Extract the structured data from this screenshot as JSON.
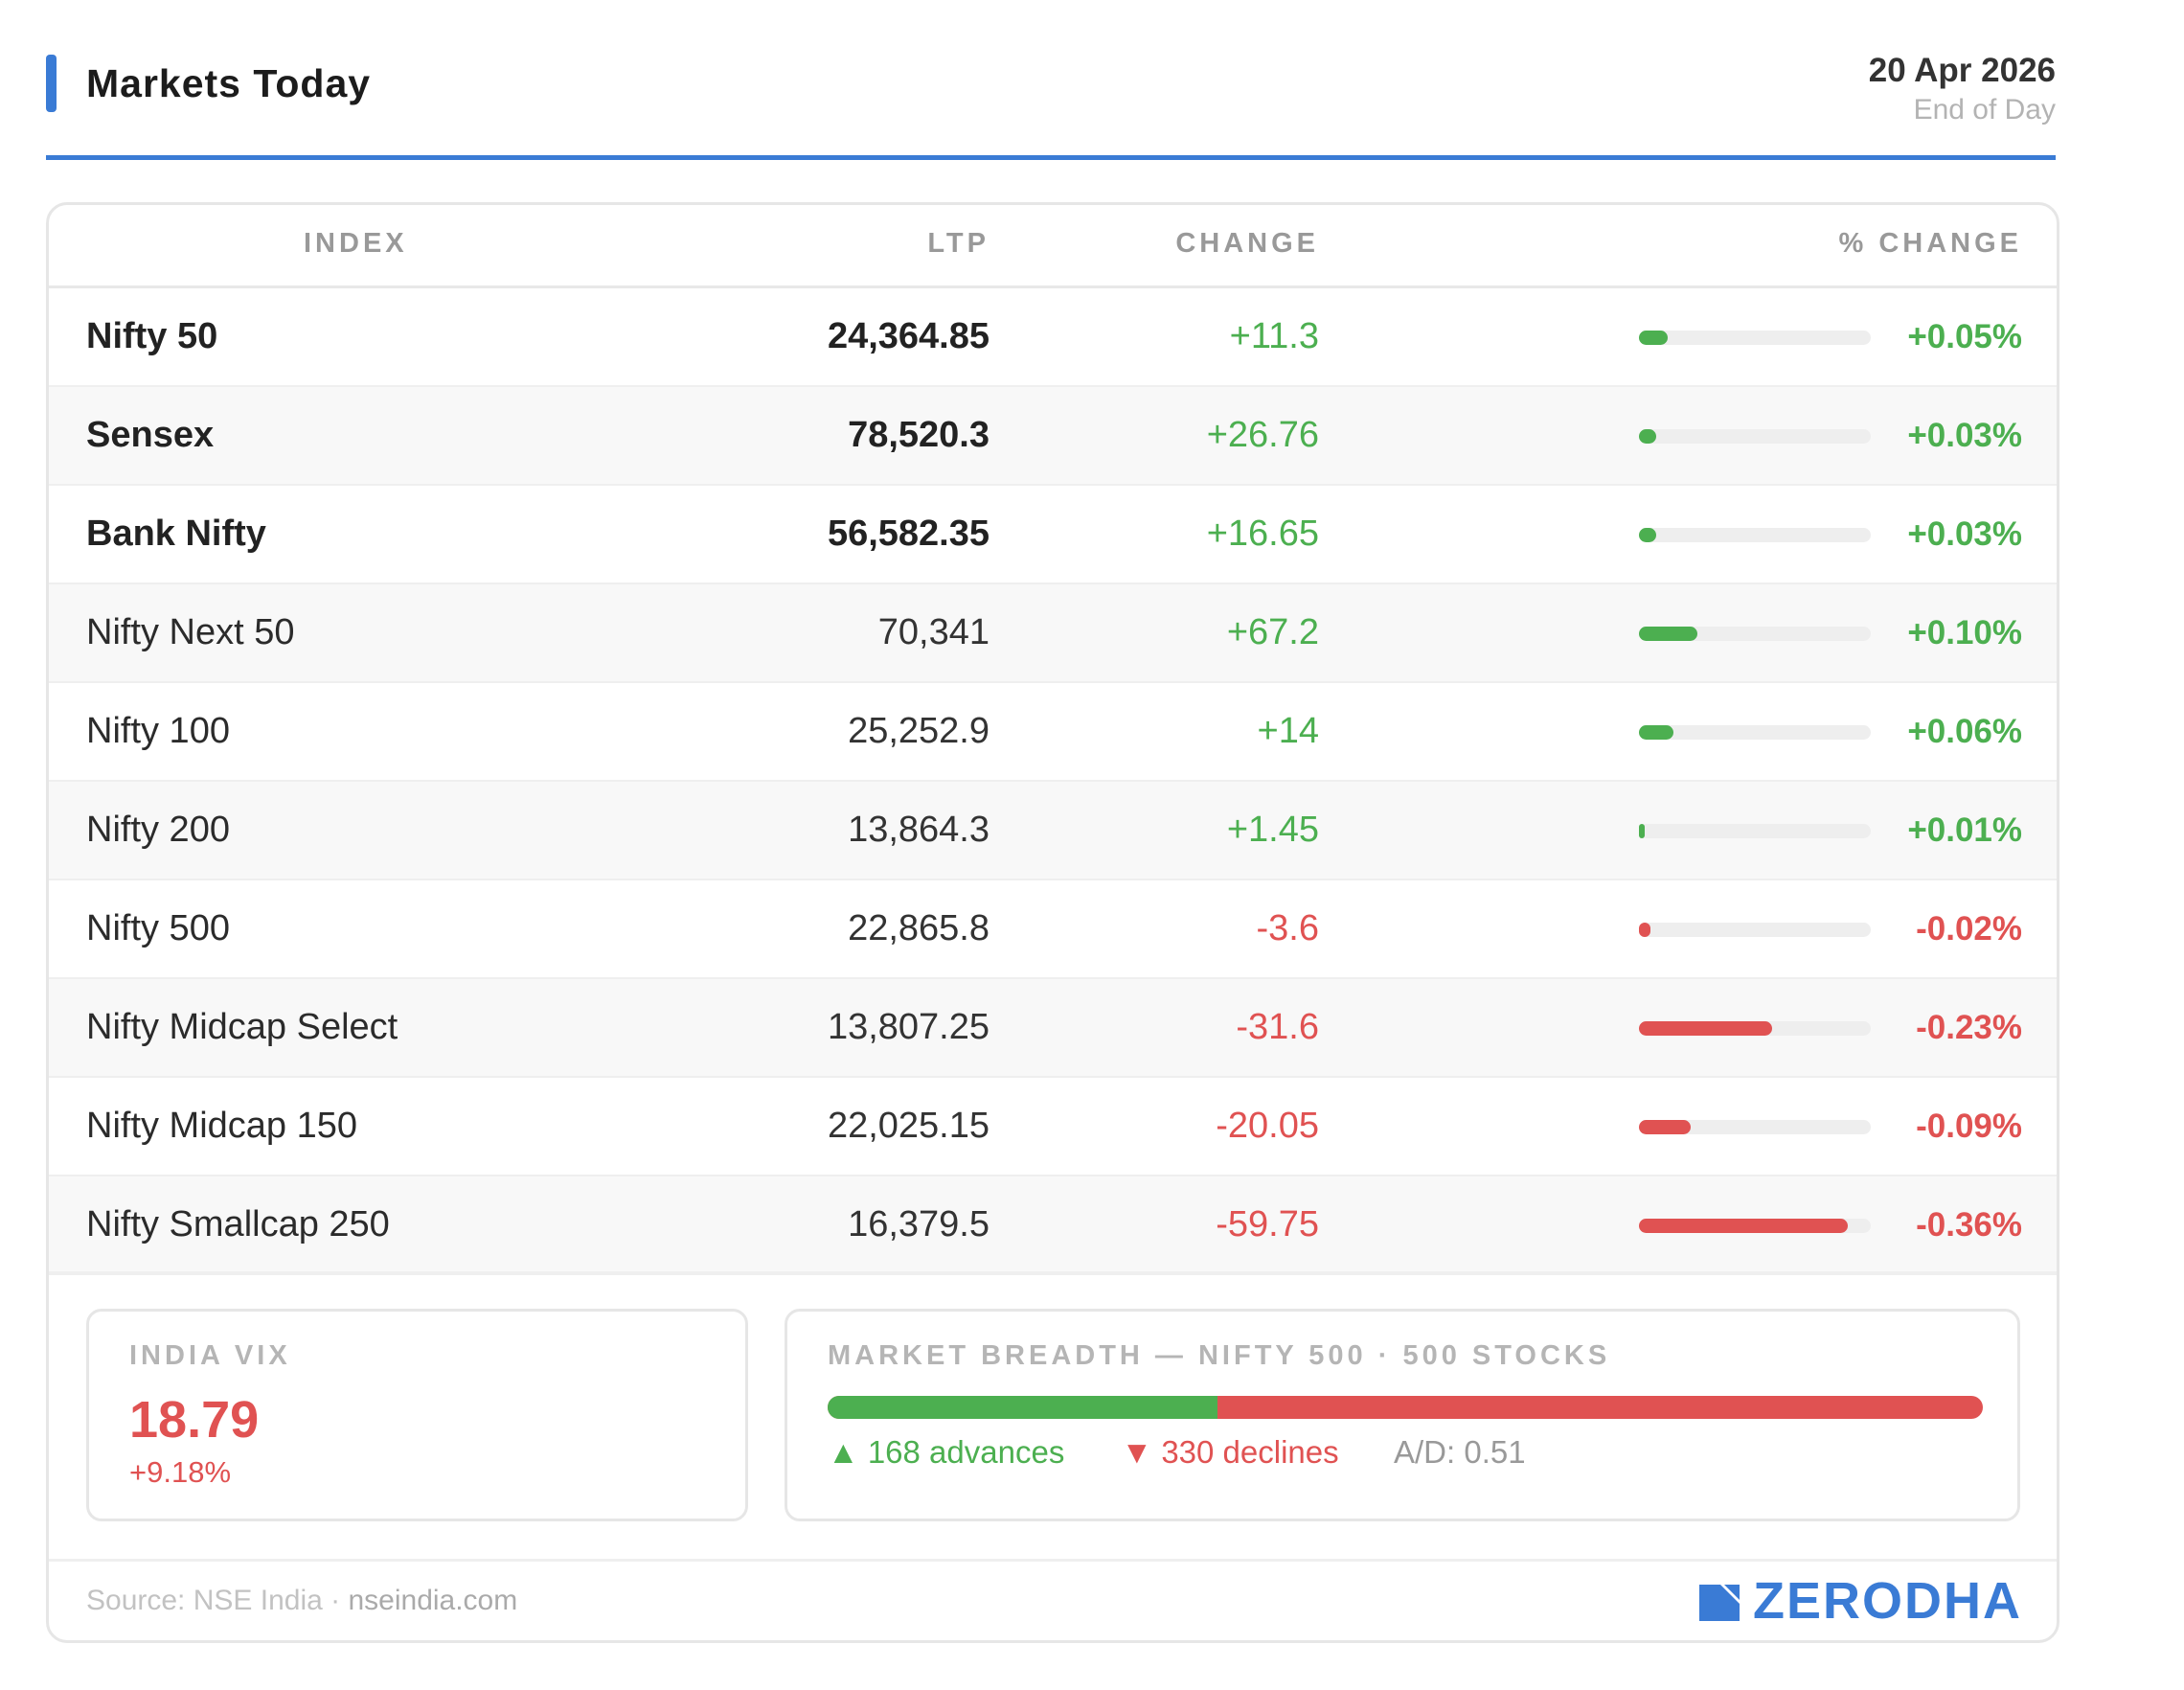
{
  "header": {
    "title": "Markets Today",
    "date": "20 Apr 2026",
    "subtitle": "End of Day",
    "accent_color": "#3a7bd5"
  },
  "table": {
    "columns": [
      "INDEX",
      "LTP",
      "CHANGE",
      "% CHANGE"
    ],
    "pct_bar_max": 0.4,
    "rows": [
      {
        "name": "Nifty 50",
        "ltp": "24,364.85",
        "change": "+11.3",
        "pct": "+0.05%",
        "pct_value": 0.05,
        "major": true
      },
      {
        "name": "Sensex",
        "ltp": "78,520.3",
        "change": "+26.76",
        "pct": "+0.03%",
        "pct_value": 0.03,
        "major": true
      },
      {
        "name": "Bank Nifty",
        "ltp": "56,582.35",
        "change": "+16.65",
        "pct": "+0.03%",
        "pct_value": 0.03,
        "major": true
      },
      {
        "name": "Nifty Next 50",
        "ltp": "70,341",
        "change": "+67.2",
        "pct": "+0.10%",
        "pct_value": 0.1,
        "major": false
      },
      {
        "name": "Nifty 100",
        "ltp": "25,252.9",
        "change": "+14",
        "pct": "+0.06%",
        "pct_value": 0.06,
        "major": false
      },
      {
        "name": "Nifty 200",
        "ltp": "13,864.3",
        "change": "+1.45",
        "pct": "+0.01%",
        "pct_value": 0.01,
        "major": false
      },
      {
        "name": "Nifty 500",
        "ltp": "22,865.8",
        "change": "-3.6",
        "pct": "-0.02%",
        "pct_value": -0.02,
        "major": false
      },
      {
        "name": "Nifty Midcap Select",
        "ltp": "13,807.25",
        "change": "-31.6",
        "pct": "-0.23%",
        "pct_value": -0.23,
        "major": false
      },
      {
        "name": "Nifty Midcap 150",
        "ltp": "22,025.15",
        "change": "-20.05",
        "pct": "-0.09%",
        "pct_value": -0.09,
        "major": false
      },
      {
        "name": "Nifty Smallcap 250",
        "ltp": "16,379.5",
        "change": "-59.75",
        "pct": "-0.36%",
        "pct_value": -0.36,
        "major": false
      }
    ]
  },
  "vix": {
    "label": "INDIA VIX",
    "value": "18.79",
    "change": "+9.18%"
  },
  "breadth": {
    "label": "MARKET BREADTH — NIFTY 500 · 500 STOCKS",
    "advances": 168,
    "declines": 330,
    "advances_text": "▲ 168 advances",
    "declines_text": "▼ 330 declines",
    "ad_ratio_text": "A/D: 0.51"
  },
  "footer": {
    "source_prefix": "Source: NSE India · ",
    "source_host": "nseindia.com",
    "brand": "ZERODHA",
    "brand_icon": "zerodha-logo-icon"
  },
  "colors": {
    "positive": "#4caf50",
    "negative": "#e05252",
    "accent": "#3a7bd5"
  }
}
